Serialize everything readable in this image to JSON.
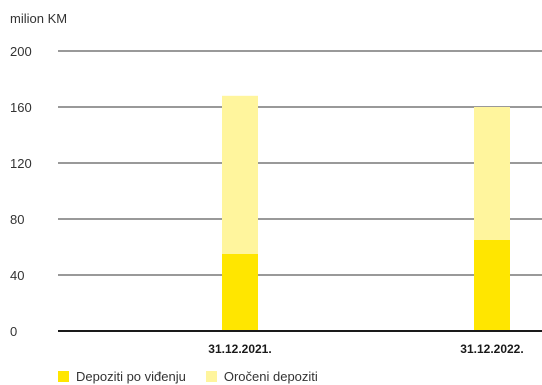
{
  "chart_data": {
    "type": "bar",
    "stacked": true,
    "unit_label": "milion KM",
    "categories": [
      "31.12.2021.",
      "31.12.2022."
    ],
    "series": [
      {
        "name": "Depoziti po viđenju",
        "values": [
          55,
          65
        ],
        "color": "#ffe600"
      },
      {
        "name": "Oročeni depoziti",
        "values": [
          113,
          95
        ],
        "color": "#fff59d"
      }
    ],
    "ylim": [
      0,
      200
    ],
    "yticks": [
      0,
      40,
      80,
      120,
      160,
      200
    ],
    "grid": true,
    "legend_position": "bottom-left"
  }
}
